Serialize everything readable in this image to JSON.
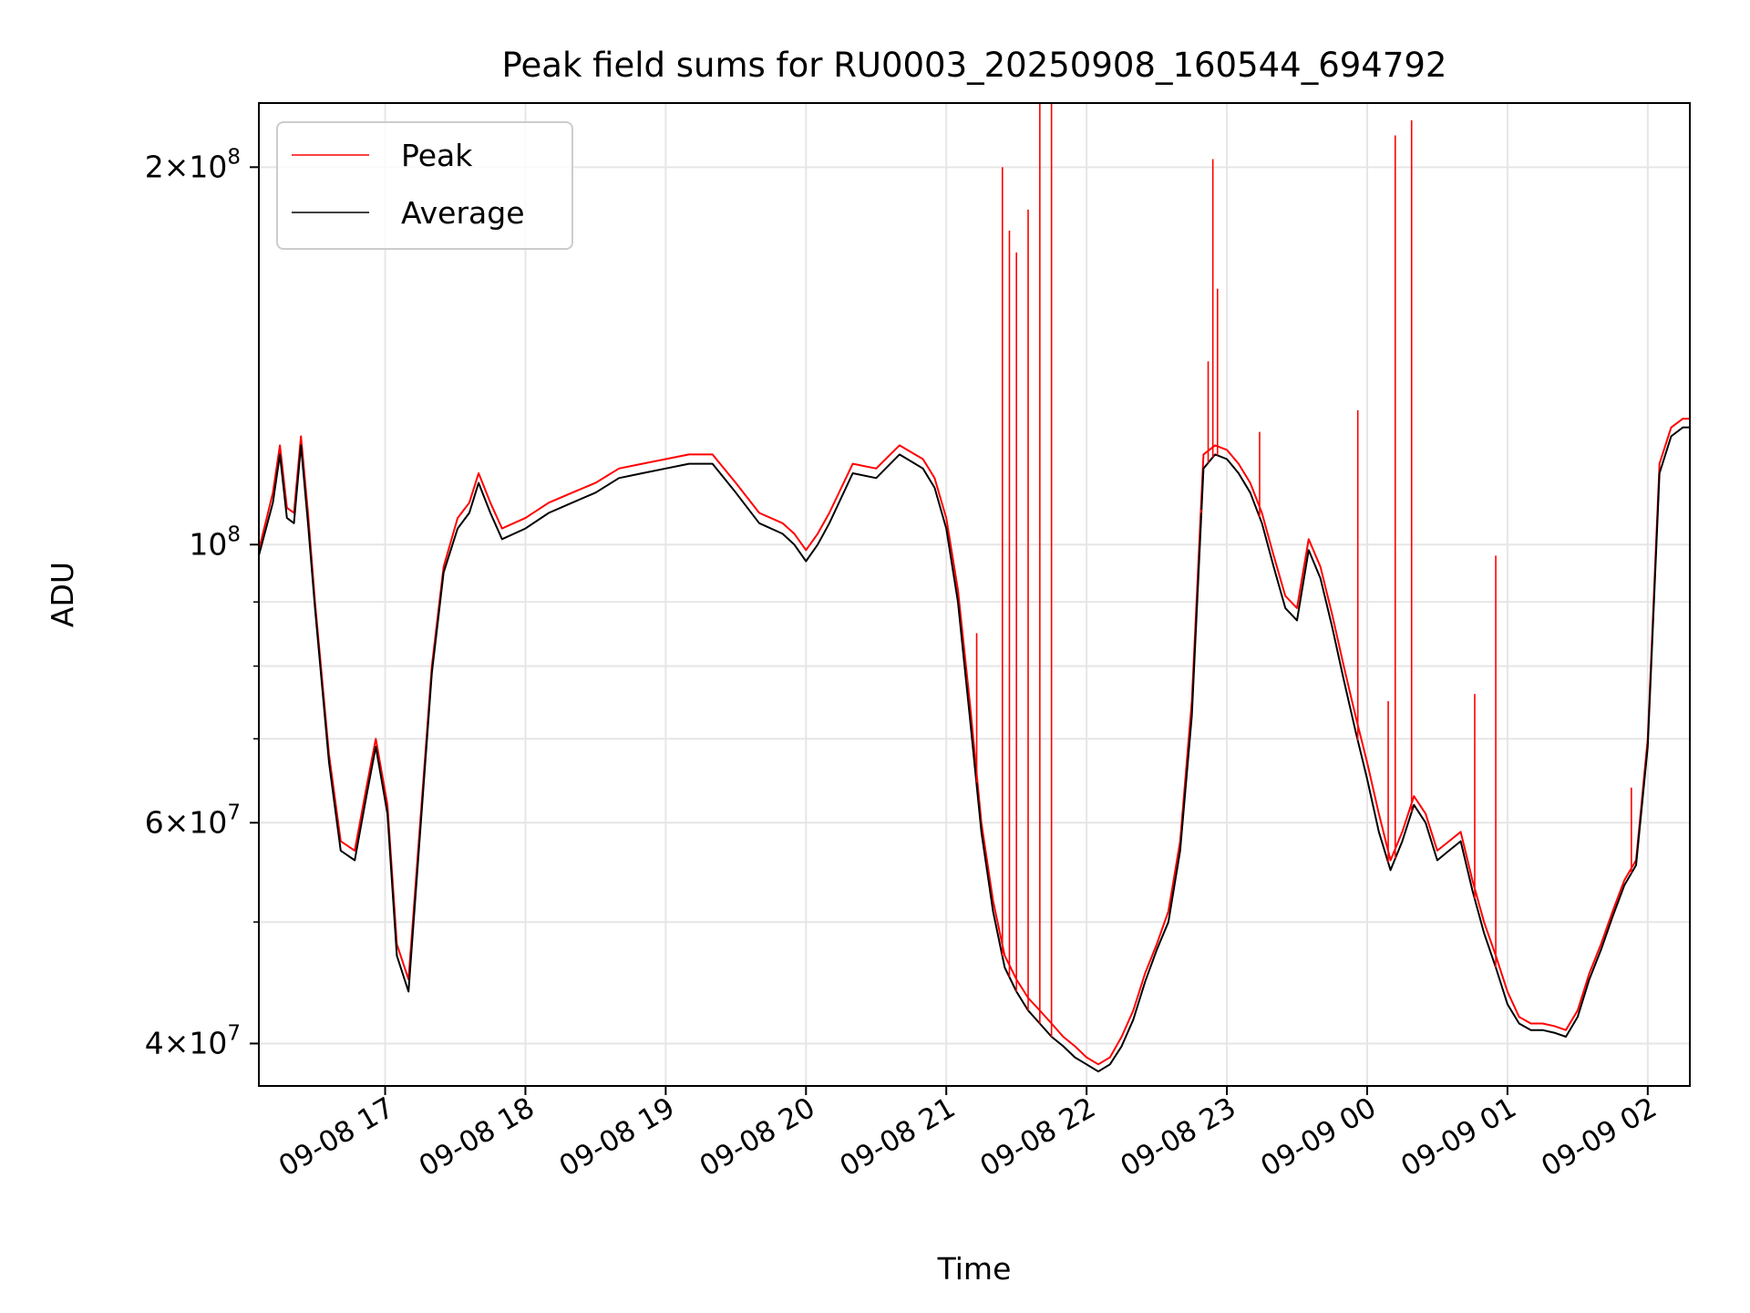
{
  "chart_data": {
    "type": "line",
    "title": "Peak field sums for RU0003_20250908_160544_694792",
    "xlabel": "Time",
    "ylabel": "ADU",
    "y_scale": "log",
    "ylim": [
      37000000,
      225000000
    ],
    "xlim": [
      "2025-09-08 16:06",
      "2025-09-09 02:18"
    ],
    "grid": true,
    "legend_position": "upper-left",
    "x_tick_labels": [
      "09-08 17",
      "09-08 18",
      "09-08 19",
      "09-08 20",
      "09-08 21",
      "09-08 22",
      "09-08 23",
      "09-09 00",
      "09-09 01",
      "09-09 02"
    ],
    "x_ticks": [
      "2025-09-08 17:00",
      "2025-09-08 18:00",
      "2025-09-08 19:00",
      "2025-09-08 20:00",
      "2025-09-08 21:00",
      "2025-09-08 22:00",
      "2025-09-08 23:00",
      "2025-09-09 00:00",
      "2025-09-09 01:00",
      "2025-09-09 02:00"
    ],
    "y_ticks": [
      {
        "value": 40000000,
        "base": "4",
        "exp": "7"
      },
      {
        "value": 60000000,
        "base": "6",
        "exp": "7"
      },
      {
        "value": 100000000,
        "base": "",
        "exp": "8"
      },
      {
        "value": 200000000,
        "base": "2",
        "exp": "8"
      }
    ],
    "y_minor_ticks": [
      50000000,
      70000000,
      80000000,
      90000000
    ],
    "series": [
      {
        "name": "Peak",
        "color": "#ff0000",
        "x": [
          "2025-09-08 16:06",
          "2025-09-08 16:12",
          "2025-09-08 16:15",
          "2025-09-08 16:18",
          "2025-09-08 16:21",
          "2025-09-08 16:24",
          "2025-09-08 16:27",
          "2025-09-08 16:30",
          "2025-09-08 16:36",
          "2025-09-08 16:41",
          "2025-09-08 16:47",
          "2025-09-08 16:52",
          "2025-09-08 16:56",
          "2025-09-08 17:01",
          "2025-09-08 17:05",
          "2025-09-08 17:10",
          "2025-09-08 17:15",
          "2025-09-08 17:20",
          "2025-09-08 17:25",
          "2025-09-08 17:31",
          "2025-09-08 17:36",
          "2025-09-08 17:40",
          "2025-09-08 17:45",
          "2025-09-08 17:50",
          "2025-09-08 18:00",
          "2025-09-08 18:10",
          "2025-09-08 18:20",
          "2025-09-08 18:30",
          "2025-09-08 18:40",
          "2025-09-08 18:50",
          "2025-09-08 19:00",
          "2025-09-08 19:10",
          "2025-09-08 19:20",
          "2025-09-08 19:30",
          "2025-09-08 19:40",
          "2025-09-08 19:50",
          "2025-09-08 19:55",
          "2025-09-08 20:00",
          "2025-09-08 20:05",
          "2025-09-08 20:10",
          "2025-09-08 20:20",
          "2025-09-08 20:30",
          "2025-09-08 20:40",
          "2025-09-08 20:50",
          "2025-09-08 20:55",
          "2025-09-08 21:00",
          "2025-09-08 21:05",
          "2025-09-08 21:10",
          "2025-09-08 21:15",
          "2025-09-08 21:20",
          "2025-09-08 21:25",
          "2025-09-08 21:30",
          "2025-09-08 21:35",
          "2025-09-08 21:40",
          "2025-09-08 21:45",
          "2025-09-08 21:50",
          "2025-09-08 21:55",
          "2025-09-08 22:00",
          "2025-09-08 22:05",
          "2025-09-08 22:10",
          "2025-09-08 22:15",
          "2025-09-08 22:20",
          "2025-09-08 22:25",
          "2025-09-08 22:30",
          "2025-09-08 22:35",
          "2025-09-08 22:40",
          "2025-09-08 22:45",
          "2025-09-08 22:50",
          "2025-09-08 22:55",
          "2025-09-08 23:00",
          "2025-09-08 23:05",
          "2025-09-08 23:10",
          "2025-09-08 23:15",
          "2025-09-08 23:20",
          "2025-09-08 23:25",
          "2025-09-08 23:30",
          "2025-09-08 23:35",
          "2025-09-08 23:40",
          "2025-09-08 23:45",
          "2025-09-08 23:50",
          "2025-09-08 23:55",
          "2025-09-09 00:00",
          "2025-09-09 00:05",
          "2025-09-09 00:10",
          "2025-09-09 00:15",
          "2025-09-09 00:20",
          "2025-09-09 00:25",
          "2025-09-09 00:30",
          "2025-09-09 00:35",
          "2025-09-09 00:40",
          "2025-09-09 00:45",
          "2025-09-09 00:50",
          "2025-09-09 00:55",
          "2025-09-09 01:00",
          "2025-09-09 01:05",
          "2025-09-09 01:10",
          "2025-09-09 01:15",
          "2025-09-09 01:20",
          "2025-09-09 01:25",
          "2025-09-09 01:30",
          "2025-09-09 01:35",
          "2025-09-09 01:40",
          "2025-09-09 01:45",
          "2025-09-09 01:50",
          "2025-09-09 01:55",
          "2025-09-09 02:00",
          "2025-09-09 02:05",
          "2025-09-09 02:10",
          "2025-09-09 02:15",
          "2025-09-09 02:18"
        ],
        "y": [
          99000000,
          110000000,
          120000000,
          107000000,
          106000000,
          122000000,
          106000000,
          90000000,
          68000000,
          58000000,
          57000000,
          64000000,
          70000000,
          62000000,
          48000000,
          45000000,
          60000000,
          80000000,
          96000000,
          105000000,
          108000000,
          114000000,
          108000000,
          103000000,
          105000000,
          108000000,
          110000000,
          112000000,
          115000000,
          116000000,
          117000000,
          118000000,
          118000000,
          112000000,
          106000000,
          104000000,
          102000000,
          99000000,
          102000000,
          106000000,
          116000000,
          115000000,
          120000000,
          117000000,
          113000000,
          105000000,
          92000000,
          75000000,
          60000000,
          52000000,
          47000000,
          45000000,
          43500000,
          42500000,
          41500000,
          40500000,
          39800000,
          39000000,
          38500000,
          39000000,
          40500000,
          42500000,
          45500000,
          48000000,
          51000000,
          58000000,
          75000000,
          118000000,
          120000000,
          119000000,
          116000000,
          112000000,
          106000000,
          98000000,
          91000000,
          89000000,
          101000000,
          96000000,
          88000000,
          80000000,
          73000000,
          67000000,
          61000000,
          56000000,
          59000000,
          63000000,
          61000000,
          57000000,
          58000000,
          59000000,
          54000000,
          50000000,
          47000000,
          44000000,
          42000000,
          41500000,
          41500000,
          41300000,
          41000000,
          42500000,
          45500000,
          48000000,
          51000000,
          54000000,
          56000000,
          70000000,
          116000000,
          124000000,
          126000000,
          126000000
        ]
      },
      {
        "name": "Average",
        "color": "#000000",
        "x": [
          "2025-09-08 16:06",
          "2025-09-08 16:12",
          "2025-09-08 16:15",
          "2025-09-08 16:18",
          "2025-09-08 16:21",
          "2025-09-08 16:24",
          "2025-09-08 16:27",
          "2025-09-08 16:30",
          "2025-09-08 16:36",
          "2025-09-08 16:41",
          "2025-09-08 16:47",
          "2025-09-08 16:52",
          "2025-09-08 16:56",
          "2025-09-08 17:01",
          "2025-09-08 17:05",
          "2025-09-08 17:10",
          "2025-09-08 17:15",
          "2025-09-08 17:20",
          "2025-09-08 17:25",
          "2025-09-08 17:31",
          "2025-09-08 17:36",
          "2025-09-08 17:40",
          "2025-09-08 17:45",
          "2025-09-08 17:50",
          "2025-09-08 18:00",
          "2025-09-08 18:10",
          "2025-09-08 18:20",
          "2025-09-08 18:30",
          "2025-09-08 18:40",
          "2025-09-08 18:50",
          "2025-09-08 19:00",
          "2025-09-08 19:10",
          "2025-09-08 19:20",
          "2025-09-08 19:30",
          "2025-09-08 19:40",
          "2025-09-08 19:50",
          "2025-09-08 19:55",
          "2025-09-08 20:00",
          "2025-09-08 20:05",
          "2025-09-08 20:10",
          "2025-09-08 20:20",
          "2025-09-08 20:30",
          "2025-09-08 20:40",
          "2025-09-08 20:50",
          "2025-09-08 20:55",
          "2025-09-08 21:00",
          "2025-09-08 21:05",
          "2025-09-08 21:10",
          "2025-09-08 21:15",
          "2025-09-08 21:20",
          "2025-09-08 21:25",
          "2025-09-08 21:30",
          "2025-09-08 21:35",
          "2025-09-08 21:40",
          "2025-09-08 21:45",
          "2025-09-08 21:50",
          "2025-09-08 21:55",
          "2025-09-08 22:00",
          "2025-09-08 22:05",
          "2025-09-08 22:10",
          "2025-09-08 22:15",
          "2025-09-08 22:20",
          "2025-09-08 22:25",
          "2025-09-08 22:30",
          "2025-09-08 22:35",
          "2025-09-08 22:40",
          "2025-09-08 22:45",
          "2025-09-08 22:50",
          "2025-09-08 22:55",
          "2025-09-08 23:00",
          "2025-09-08 23:05",
          "2025-09-08 23:10",
          "2025-09-08 23:15",
          "2025-09-08 23:20",
          "2025-09-08 23:25",
          "2025-09-08 23:30",
          "2025-09-08 23:35",
          "2025-09-08 23:40",
          "2025-09-08 23:45",
          "2025-09-08 23:50",
          "2025-09-08 23:55",
          "2025-09-09 00:00",
          "2025-09-09 00:05",
          "2025-09-09 00:10",
          "2025-09-09 00:15",
          "2025-09-09 00:20",
          "2025-09-09 00:25",
          "2025-09-09 00:30",
          "2025-09-09 00:35",
          "2025-09-09 00:40",
          "2025-09-09 00:45",
          "2025-09-09 00:50",
          "2025-09-09 00:55",
          "2025-09-09 01:00",
          "2025-09-09 01:05",
          "2025-09-09 01:10",
          "2025-09-09 01:15",
          "2025-09-09 01:20",
          "2025-09-09 01:25",
          "2025-09-09 01:30",
          "2025-09-09 01:35",
          "2025-09-09 01:40",
          "2025-09-09 01:45",
          "2025-09-09 01:50",
          "2025-09-09 01:55",
          "2025-09-09 02:00",
          "2025-09-09 02:05",
          "2025-09-09 02:10",
          "2025-09-09 02:15",
          "2025-09-09 02:18"
        ],
        "y": [
          98000000,
          108000000,
          118000000,
          105000000,
          104000000,
          120000000,
          104000000,
          89000000,
          67000000,
          57000000,
          56000000,
          63000000,
          69000000,
          61000000,
          47000000,
          44000000,
          59000000,
          79000000,
          95000000,
          103000000,
          106000000,
          112000000,
          106000000,
          101000000,
          103000000,
          106000000,
          108000000,
          110000000,
          113000000,
          114000000,
          115000000,
          116000000,
          116000000,
          110000000,
          104000000,
          102000000,
          100000000,
          97000000,
          100000000,
          104000000,
          114000000,
          113000000,
          118000000,
          115000000,
          111000000,
          103000000,
          90000000,
          73000000,
          59000000,
          51000000,
          46000000,
          44000000,
          42500000,
          41500000,
          40500000,
          39800000,
          39000000,
          38500000,
          38000000,
          38500000,
          39800000,
          41800000,
          44800000,
          47500000,
          50000000,
          57000000,
          73000000,
          115000000,
          118000000,
          117000000,
          114000000,
          110000000,
          104000000,
          96000000,
          89000000,
          87000000,
          99000000,
          94000000,
          86000000,
          78000000,
          71000000,
          65000000,
          59000000,
          55000000,
          58000000,
          62000000,
          60000000,
          56000000,
          57000000,
          58000000,
          53000000,
          49000000,
          46000000,
          43000000,
          41500000,
          41000000,
          41000000,
          40800000,
          40500000,
          42000000,
          45000000,
          47500000,
          50500000,
          53500000,
          55500000,
          69000000,
          114000000,
          122000000,
          124000000,
          124000000
        ]
      }
    ],
    "peak_spikes": [
      {
        "x": "2025-09-08 21:24",
        "y": 200000000
      },
      {
        "x": "2025-09-08 21:27",
        "y": 178000000
      },
      {
        "x": "2025-09-08 21:30",
        "y": 171000000
      },
      {
        "x": "2025-09-08 21:35",
        "y": 185000000
      },
      {
        "x": "2025-09-08 21:40",
        "y": 225000000
      },
      {
        "x": "2025-09-08 21:45",
        "y": 225000000
      },
      {
        "x": "2025-09-08 21:13",
        "y": 85000000
      },
      {
        "x": "2025-09-08 22:49",
        "y": 106000000
      },
      {
        "x": "2025-09-08 22:52",
        "y": 140000000
      },
      {
        "x": "2025-09-08 22:54",
        "y": 203000000
      },
      {
        "x": "2025-09-08 22:56",
        "y": 160000000
      },
      {
        "x": "2025-09-08 23:14",
        "y": 123000000
      },
      {
        "x": "2025-09-08 23:56",
        "y": 128000000
      },
      {
        "x": "2025-09-09 00:09",
        "y": 75000000
      },
      {
        "x": "2025-09-09 00:12",
        "y": 212000000
      },
      {
        "x": "2025-09-09 00:19",
        "y": 218000000
      },
      {
        "x": "2025-09-09 00:46",
        "y": 76000000
      },
      {
        "x": "2025-09-09 00:55",
        "y": 98000000
      },
      {
        "x": "2025-09-09 01:53",
        "y": 64000000
      }
    ]
  }
}
